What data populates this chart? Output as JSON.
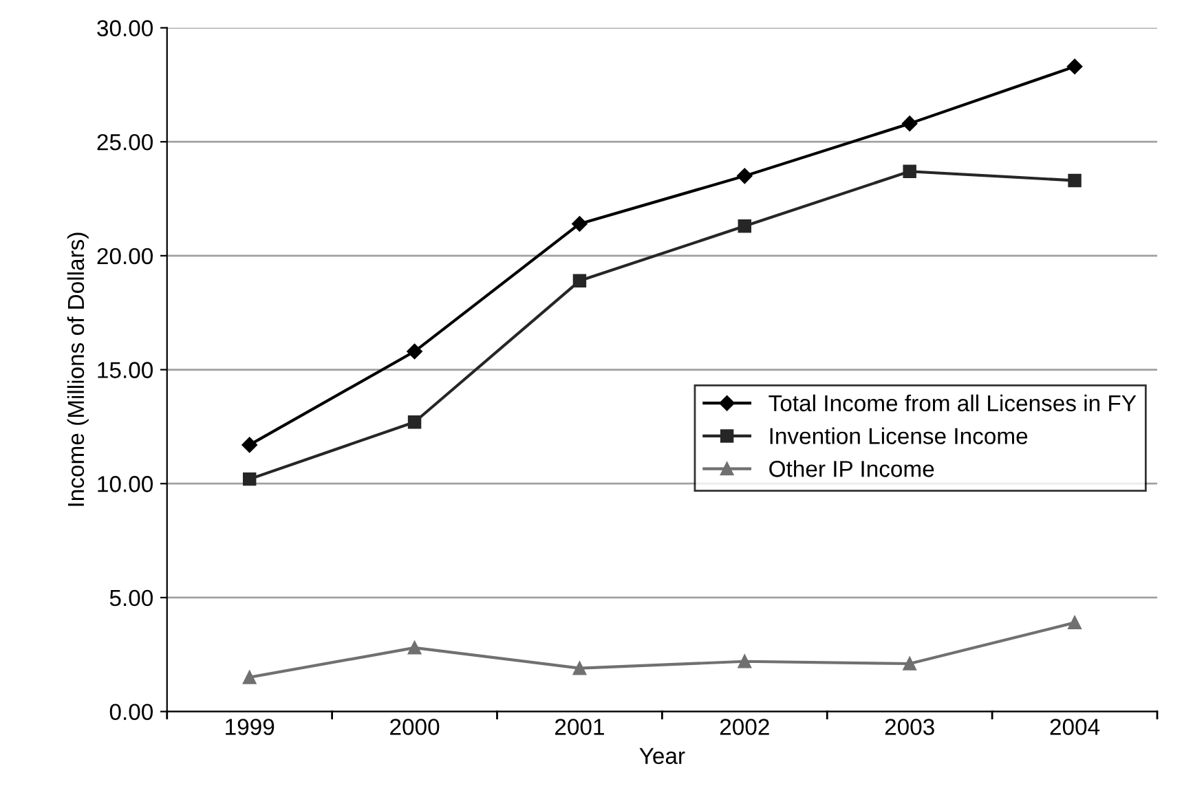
{
  "chart_data": {
    "type": "line",
    "xlabel": "Year",
    "ylabel": "Income (Millions of Dollars)",
    "categories": [
      "1999",
      "2000",
      "2001",
      "2002",
      "2003",
      "2004"
    ],
    "series": [
      {
        "name": "Total Income from all Licenses in FY",
        "color": "#000000",
        "marker": "diamond",
        "values": [
          11.7,
          15.8,
          21.4,
          23.5,
          25.8,
          28.3
        ]
      },
      {
        "name": "Invention License Income",
        "color": "#262626",
        "marker": "square",
        "values": [
          10.2,
          12.7,
          18.9,
          21.3,
          23.7,
          23.3
        ]
      },
      {
        "name": "Other IP Income",
        "color": "#707070",
        "marker": "triangle",
        "values": [
          1.5,
          2.8,
          1.9,
          2.2,
          2.1,
          3.9
        ]
      }
    ],
    "ylim": [
      0,
      30
    ],
    "yticks": [
      {
        "value": 0,
        "label": "0.00"
      },
      {
        "value": 5,
        "label": "5.00"
      },
      {
        "value": 10,
        "label": "10.00"
      },
      {
        "value": 15,
        "label": "15.00"
      },
      {
        "value": 20,
        "label": "20.00"
      },
      {
        "value": 25,
        "label": "25.00"
      },
      {
        "value": 30,
        "label": "30.00"
      }
    ],
    "grid": "y",
    "legend": "right",
    "line_style": "solid"
  }
}
